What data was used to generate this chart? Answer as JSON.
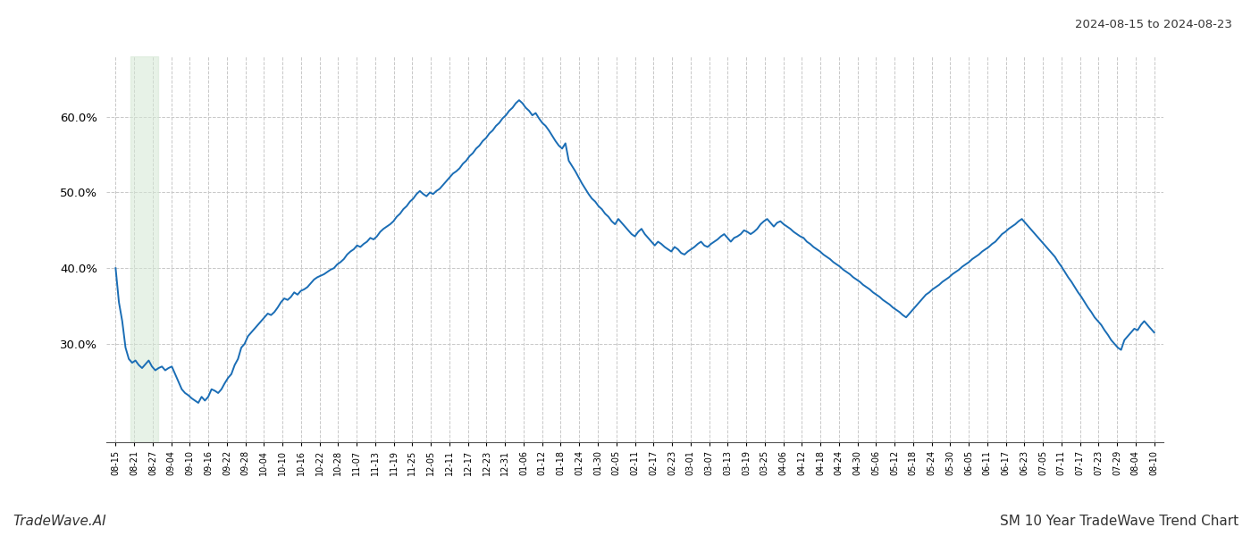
{
  "title_top_right": "2024-08-15 to 2024-08-23",
  "footer_left": "TradeWave.AI",
  "footer_right": "SM 10 Year TradeWave Trend Chart",
  "line_color": "#1a6db5",
  "line_width": 1.4,
  "background_color": "#ffffff",
  "grid_color": "#c8c8c8",
  "grid_linestyle": "--",
  "shade_color": "#d5e8d4",
  "shade_alpha": 0.55,
  "ylim": [
    0.17,
    0.68
  ],
  "yticks": [
    0.3,
    0.4,
    0.5,
    0.6
  ],
  "x_labels": [
    "08-15",
    "08-21",
    "08-27",
    "09-04",
    "09-10",
    "09-16",
    "09-22",
    "09-28",
    "10-04",
    "10-10",
    "10-16",
    "10-22",
    "10-28",
    "11-07",
    "11-13",
    "11-19",
    "11-25",
    "12-05",
    "12-11",
    "12-17",
    "12-23",
    "12-31",
    "01-06",
    "01-12",
    "01-18",
    "01-24",
    "01-30",
    "02-05",
    "02-11",
    "02-17",
    "02-23",
    "03-01",
    "03-07",
    "03-13",
    "03-19",
    "03-25",
    "04-06",
    "04-12",
    "04-18",
    "04-24",
    "04-30",
    "05-06",
    "05-12",
    "05-18",
    "05-24",
    "05-30",
    "06-05",
    "06-11",
    "06-17",
    "06-23",
    "07-05",
    "07-11",
    "07-17",
    "07-23",
    "07-29",
    "08-04",
    "08-10"
  ],
  "shade_x_start_label": "08-21",
  "shade_x_end_label": "08-27",
  "y_values": [
    0.4,
    0.355,
    0.33,
    0.295,
    0.28,
    0.275,
    0.278,
    0.272,
    0.268,
    0.273,
    0.278,
    0.27,
    0.265,
    0.268,
    0.27,
    0.265,
    0.268,
    0.27,
    0.26,
    0.25,
    0.24,
    0.235,
    0.232,
    0.228,
    0.225,
    0.222,
    0.23,
    0.225,
    0.23,
    0.24,
    0.238,
    0.235,
    0.24,
    0.248,
    0.255,
    0.26,
    0.272,
    0.28,
    0.295,
    0.3,
    0.31,
    0.315,
    0.32,
    0.325,
    0.33,
    0.335,
    0.34,
    0.338,
    0.342,
    0.348,
    0.355,
    0.36,
    0.358,
    0.362,
    0.368,
    0.365,
    0.37,
    0.372,
    0.375,
    0.38,
    0.385,
    0.388,
    0.39,
    0.392,
    0.395,
    0.398,
    0.4,
    0.405,
    0.408,
    0.412,
    0.418,
    0.422,
    0.425,
    0.43,
    0.428,
    0.432,
    0.435,
    0.44,
    0.438,
    0.442,
    0.448,
    0.452,
    0.455,
    0.458,
    0.462,
    0.468,
    0.472,
    0.478,
    0.482,
    0.488,
    0.492,
    0.498,
    0.502,
    0.498,
    0.495,
    0.5,
    0.498,
    0.502,
    0.505,
    0.51,
    0.515,
    0.52,
    0.525,
    0.528,
    0.532,
    0.538,
    0.542,
    0.548,
    0.552,
    0.558,
    0.562,
    0.568,
    0.572,
    0.578,
    0.582,
    0.588,
    0.592,
    0.598,
    0.602,
    0.608,
    0.612,
    0.618,
    0.622,
    0.618,
    0.612,
    0.608,
    0.602,
    0.605,
    0.598,
    0.592,
    0.588,
    0.582,
    0.575,
    0.568,
    0.562,
    0.558,
    0.565,
    0.542,
    0.535,
    0.528,
    0.52,
    0.512,
    0.505,
    0.498,
    0.492,
    0.488,
    0.482,
    0.478,
    0.472,
    0.468,
    0.462,
    0.458,
    0.465,
    0.46,
    0.455,
    0.45,
    0.445,
    0.442,
    0.448,
    0.452,
    0.445,
    0.44,
    0.435,
    0.43,
    0.435,
    0.432,
    0.428,
    0.425,
    0.422,
    0.428,
    0.425,
    0.42,
    0.418,
    0.422,
    0.425,
    0.428,
    0.432,
    0.435,
    0.43,
    0.428,
    0.432,
    0.435,
    0.438,
    0.442,
    0.445,
    0.44,
    0.435,
    0.44,
    0.442,
    0.445,
    0.45,
    0.448,
    0.445,
    0.448,
    0.452,
    0.458,
    0.462,
    0.465,
    0.46,
    0.455,
    0.46,
    0.462,
    0.458,
    0.455,
    0.452,
    0.448,
    0.445,
    0.442,
    0.44,
    0.435,
    0.432,
    0.428,
    0.425,
    0.422,
    0.418,
    0.415,
    0.412,
    0.408,
    0.405,
    0.402,
    0.398,
    0.395,
    0.392,
    0.388,
    0.385,
    0.382,
    0.378,
    0.375,
    0.372,
    0.368,
    0.365,
    0.362,
    0.358,
    0.355,
    0.352,
    0.348,
    0.345,
    0.342,
    0.338,
    0.335,
    0.34,
    0.345,
    0.35,
    0.355,
    0.36,
    0.365,
    0.368,
    0.372,
    0.375,
    0.378,
    0.382,
    0.385,
    0.388,
    0.392,
    0.395,
    0.398,
    0.402,
    0.405,
    0.408,
    0.412,
    0.415,
    0.418,
    0.422,
    0.425,
    0.428,
    0.432,
    0.435,
    0.44,
    0.445,
    0.448,
    0.452,
    0.455,
    0.458,
    0.462,
    0.465,
    0.46,
    0.455,
    0.45,
    0.445,
    0.44,
    0.435,
    0.43,
    0.425,
    0.42,
    0.415,
    0.408,
    0.402,
    0.395,
    0.388,
    0.382,
    0.375,
    0.368,
    0.362,
    0.355,
    0.348,
    0.342,
    0.335,
    0.33,
    0.325,
    0.318,
    0.312,
    0.305,
    0.3,
    0.295,
    0.292,
    0.305,
    0.31,
    0.315,
    0.32,
    0.318,
    0.325,
    0.33,
    0.325,
    0.32,
    0.315
  ]
}
